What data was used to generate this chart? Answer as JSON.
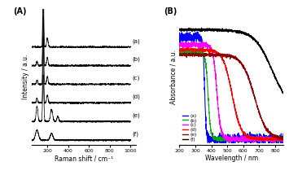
{
  "panel_A_label": "(A)",
  "panel_B_label": "(B)",
  "raman_xlabel": "Raman shift / cm⁻¹",
  "raman_ylabel": "Intensity / a.u.",
  "uvvis_xlabel": "Wavelength / nm",
  "uvvis_ylabel": "Absorbance / a.u.",
  "raman_xlim": [
    50,
    1050
  ],
  "uvvis_xlim": [
    200,
    850
  ],
  "raman_labels": [
    "(a)",
    "(b)",
    "(c)",
    "(d)",
    "(e)",
    "(f)"
  ],
  "uvvis_labels": [
    "(a)",
    "(b)",
    "(c)",
    "(d)",
    "(e)",
    "(f)"
  ],
  "uvvis_colors": [
    "#0000ff",
    "#00aa00",
    "#ff00ff",
    "#ff0000",
    "#8b0000",
    "#000000"
  ]
}
